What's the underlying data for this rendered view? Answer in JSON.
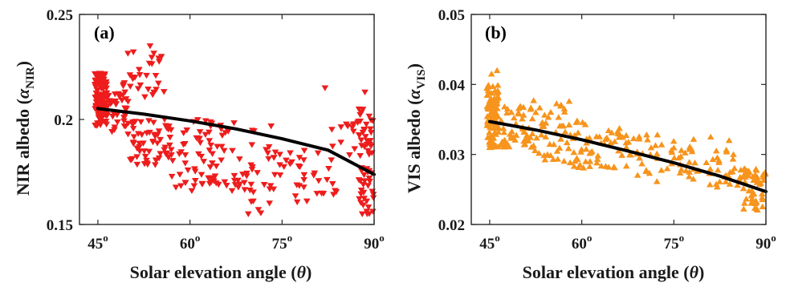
{
  "chart_data": [
    {
      "type": "scatter",
      "panel_label": "(a)",
      "xlabel": "Solar elevation angle (θ)",
      "ylabel_main": "NIR albedo (α",
      "ylabel_sub": "NIR",
      "ylabel_close": ")",
      "xlim": [
        42,
        90
      ],
      "ylim": [
        0.15,
        0.25
      ],
      "x_ticks": [
        {
          "v": 45,
          "label": "45"
        },
        {
          "v": 60,
          "label": "60"
        },
        {
          "v": 75,
          "label": "75"
        },
        {
          "v": 90,
          "label": "90"
        }
      ],
      "x_tick_suffix": "o",
      "y_ticks": [
        {
          "v": 0.15,
          "label": "0.15"
        },
        {
          "v": 0.2,
          "label": "0.2"
        },
        {
          "v": 0.25,
          "label": "0.25"
        }
      ],
      "marker": "triangle-down",
      "color": "#ee1c1c",
      "fit": {
        "x": [
          45,
          52.5,
          60,
          67.5,
          75,
          82.5,
          90
        ],
        "y": [
          0.2052,
          0.2025,
          0.1993,
          0.1955,
          0.1908,
          0.1854,
          0.1738
        ]
      },
      "clusters": [
        {
          "x": [
            44.5,
            46.5
          ],
          "y": [
            0.197,
            0.222
          ],
          "n": 110
        },
        {
          "x": [
            46.5,
            50
          ],
          "y": [
            0.193,
            0.215
          ],
          "n": 35
        },
        {
          "x": [
            49,
            56
          ],
          "y": [
            0.21,
            0.233
          ],
          "n": 30
        },
        {
          "x": [
            50,
            57
          ],
          "y": [
            0.178,
            0.2
          ],
          "n": 55
        },
        {
          "x": [
            56,
            64
          ],
          "y": [
            0.166,
            0.2
          ],
          "n": 50
        },
        {
          "x": [
            63,
            74
          ],
          "y": [
            0.165,
            0.2
          ],
          "n": 55
        },
        {
          "x": [
            67,
            73
          ],
          "y": [
            0.155,
            0.175
          ],
          "n": 12
        },
        {
          "x": [
            74,
            84
          ],
          "y": [
            0.16,
            0.19
          ],
          "n": 35
        },
        {
          "x": [
            83,
            88
          ],
          "y": [
            0.18,
            0.2
          ],
          "n": 15
        },
        {
          "x": [
            87.5,
            90
          ],
          "y": [
            0.155,
            0.205
          ],
          "n": 60
        }
      ],
      "extra_points": [
        {
          "x": 82,
          "y": 0.215
        },
        {
          "x": 88.5,
          "y": 0.213
        },
        {
          "x": 53.5,
          "y": 0.235
        },
        {
          "x": 69.5,
          "y": 0.155
        }
      ]
    },
    {
      "type": "scatter",
      "panel_label": "(b)",
      "xlabel": "Solar elevation angle (θ)",
      "ylabel_main": "VIS albedo (α",
      "ylabel_sub": "VIS",
      "ylabel_close": ")",
      "xlim": [
        42,
        90
      ],
      "ylim": [
        0.02,
        0.05
      ],
      "x_ticks": [
        {
          "v": 45,
          "label": "45"
        },
        {
          "v": 60,
          "label": "60"
        },
        {
          "v": 75,
          "label": "75"
        },
        {
          "v": 90,
          "label": "90"
        }
      ],
      "x_tick_suffix": "o",
      "y_ticks": [
        {
          "v": 0.02,
          "label": "0.02"
        },
        {
          "v": 0.03,
          "label": "0.03"
        },
        {
          "v": 0.04,
          "label": "0.04"
        },
        {
          "v": 0.05,
          "label": "0.05"
        }
      ],
      "marker": "triangle-up",
      "color": "#f7941d",
      "fit": {
        "x": [
          45,
          52.5,
          60,
          67.5,
          75,
          82.5,
          90
        ],
        "y": [
          0.0347,
          0.0335,
          0.0321,
          0.0305,
          0.0288,
          0.0269,
          0.0247
        ]
      },
      "clusters": [
        {
          "x": [
            44.5,
            46.5
          ],
          "y": [
            0.031,
            0.04
          ],
          "n": 100
        },
        {
          "x": [
            46.5,
            52
          ],
          "y": [
            0.031,
            0.037
          ],
          "n": 50
        },
        {
          "x": [
            52,
            58
          ],
          "y": [
            0.029,
            0.038
          ],
          "n": 45
        },
        {
          "x": [
            58,
            64
          ],
          "y": [
            0.028,
            0.035
          ],
          "n": 40
        },
        {
          "x": [
            64,
            72
          ],
          "y": [
            0.027,
            0.034
          ],
          "n": 40
        },
        {
          "x": [
            72,
            80
          ],
          "y": [
            0.026,
            0.033
          ],
          "n": 35
        },
        {
          "x": [
            80,
            86
          ],
          "y": [
            0.025,
            0.031
          ],
          "n": 30
        },
        {
          "x": [
            86,
            90
          ],
          "y": [
            0.022,
            0.028
          ],
          "n": 50
        }
      ],
      "extra_points": [
        {
          "x": 45.3,
          "y": 0.0415
        },
        {
          "x": 46.2,
          "y": 0.042
        },
        {
          "x": 84,
          "y": 0.032
        },
        {
          "x": 81,
          "y": 0.0325
        }
      ]
    }
  ]
}
